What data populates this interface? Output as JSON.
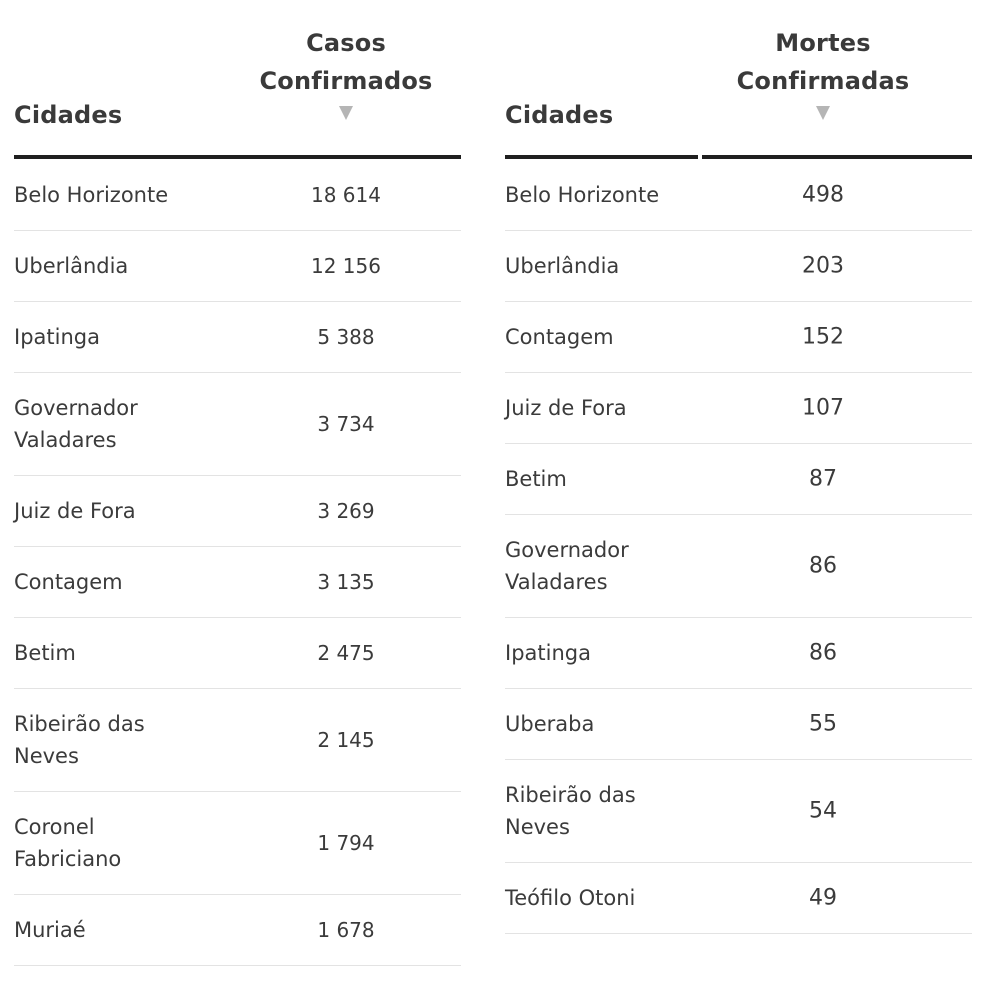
{
  "chart_data": [
    {
      "type": "table",
      "columns": [
        "Cidades",
        "Casos Confirmados"
      ],
      "rows": [
        {
          "city": "Belo Horizonte",
          "value": "18 614"
        },
        {
          "city": "Uberlândia",
          "value": "12 156"
        },
        {
          "city": "Ipatinga",
          "value": "5 388"
        },
        {
          "city": "Governador Valadares",
          "value": "3 734"
        },
        {
          "city": "Juiz de Fora",
          "value": "3 269"
        },
        {
          "city": "Contagem",
          "value": "3 135"
        },
        {
          "city": "Betim",
          "value": "2 475"
        },
        {
          "city": "Ribeirão das Neves",
          "value": "2 145"
        },
        {
          "city": "Coronel Fabriciano",
          "value": "1 794"
        },
        {
          "city": "Muriaé",
          "value": "1 678"
        }
      ],
      "sort": "descending"
    },
    {
      "type": "table",
      "columns": [
        "Cidades",
        "Mortes Confirmadas"
      ],
      "rows": [
        {
          "city": "Belo Horizonte",
          "value": "498"
        },
        {
          "city": "Uberlândia",
          "value": "203"
        },
        {
          "city": "Contagem",
          "value": "152"
        },
        {
          "city": "Juiz de Fora",
          "value": "107"
        },
        {
          "city": "Betim",
          "value": "87"
        },
        {
          "city": "Governador Valadares",
          "value": "86"
        },
        {
          "city": "Ipatinga",
          "value": "86"
        },
        {
          "city": "Uberaba",
          "value": "55"
        },
        {
          "city": "Ribeirão das Neves",
          "value": "54"
        },
        {
          "city": "Teófilo Otoni",
          "value": "49"
        }
      ],
      "sort": "descending"
    }
  ],
  "icons": {
    "sort": "triangle-down-icon"
  },
  "colors": {
    "rule": "#1f1f1f",
    "divider": "#e3e3e3",
    "sort_icon": "#b5b5b5"
  }
}
